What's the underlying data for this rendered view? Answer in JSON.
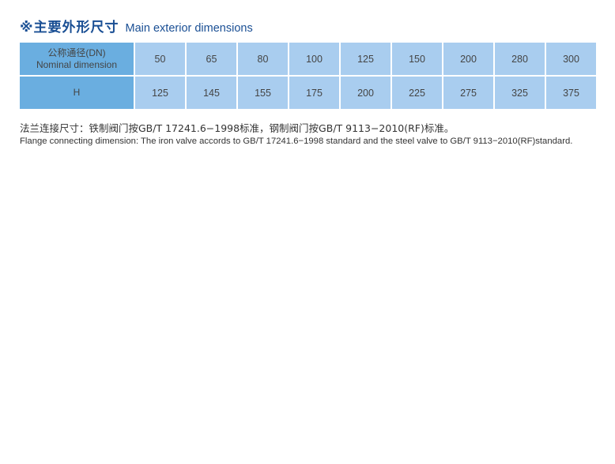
{
  "title": {
    "zh": "※主要外形尺寸",
    "en": "Main exterior dimensions"
  },
  "table": {
    "row_headers": [
      {
        "zh": "公称通径(DN)",
        "en": "Nominal dimension"
      },
      {
        "zh": "H"
      }
    ],
    "dn": [
      "50",
      "65",
      "80",
      "100",
      "125",
      "150",
      "200",
      "280",
      "300"
    ],
    "h": [
      "125",
      "145",
      "155",
      "175",
      "200",
      "225",
      "275",
      "325",
      "375"
    ]
  },
  "note": {
    "zh": "法兰连接尺寸：铁制阀门按GB/T 17241.6−1998标准，钢制阀门按GB/T 9113−2010(RF)标准。",
    "en": "Flange connecting dimension: The iron valve accords to GB/T 17241.6−1998  standard and the steel valve to GB/T 9113−2010(RF)standard."
  },
  "colors": {
    "title": "#1a4f94",
    "header_cell": "#6aaee0",
    "data_cell": "#a9cdef"
  }
}
